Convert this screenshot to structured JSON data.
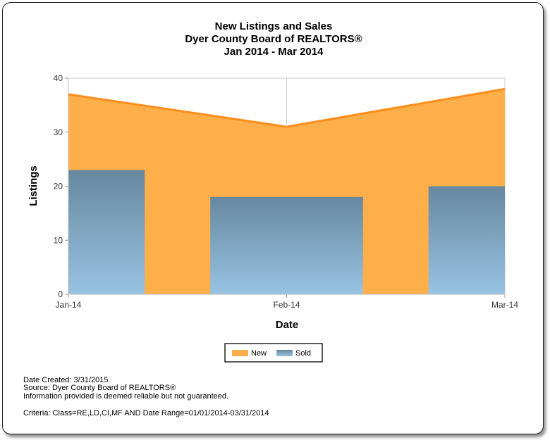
{
  "chart_data": {
    "type": "area+bar",
    "title": [
      "New Listings and Sales",
      "Dyer County Board of REALTORS®",
      "Jan 2014 - Mar 2014"
    ],
    "xlabel": "Date",
    "ylabel": "Listings",
    "categories": [
      "Jan-14",
      "Feb-14",
      "Mar-14"
    ],
    "ylim": [
      0,
      40
    ],
    "yticks": [
      0,
      10,
      20,
      30,
      40
    ],
    "grid": true,
    "series": [
      {
        "name": "New",
        "type": "area",
        "values": [
          37,
          31,
          38
        ],
        "color": "#FFAF4A",
        "line_color": "#FF8C1A"
      },
      {
        "name": "Sold",
        "type": "bar",
        "values": [
          23,
          18,
          20
        ],
        "color_top": "#67889E",
        "color_bottom": "#98C3E3"
      }
    ],
    "legend": "bottom"
  },
  "footer": {
    "date_created": "Date Created: 3/31/2015",
    "source": "Source: Dyer County Board of REALTORS®",
    "disclaimer": "Information provided is deemed reliable but not guaranteed.",
    "criteria": "Criteria: Class=RE,LD,CI,MF AND Date Range=01/01/2014-03/31/2014"
  }
}
